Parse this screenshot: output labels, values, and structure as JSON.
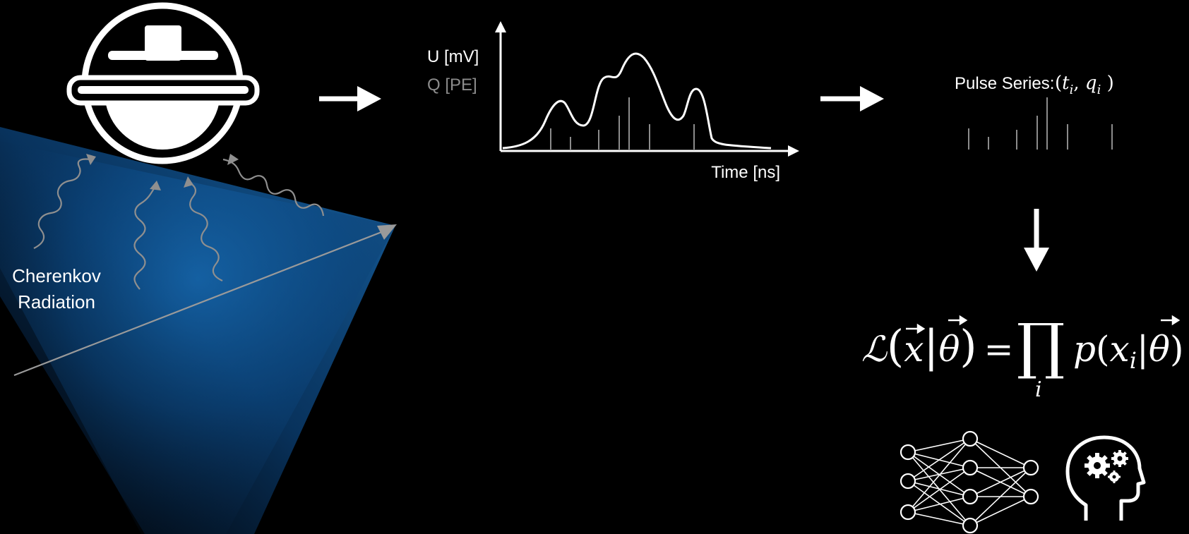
{
  "labels": {
    "cherenkov_line1": "Cherenkov",
    "cherenkov_line2": "Radiation",
    "y_label_voltage": "U [mV]",
    "y_label_charge": "Q [PE]",
    "x_label_time": "Time [ns]",
    "pulse_series_prefix": "Pulse Series:"
  },
  "formula": {
    "pulse_t": "t",
    "pulse_q": "q",
    "pulse_sub": "i",
    "likelihood_L": "ℒ",
    "vec_x": "x",
    "vec_theta": "θ",
    "equals": "=",
    "product": "∏",
    "prod_index": "i",
    "p": "p",
    "x_i": "x",
    "sub_i": "i"
  },
  "colors": {
    "background": "#000000",
    "foreground": "#ffffff",
    "muted": "#8c8c8c",
    "cherenkov_blue": "#1a6fb8"
  },
  "icons": [
    "pmt-icon",
    "neural-network-icon",
    "head-gears-icon"
  ]
}
